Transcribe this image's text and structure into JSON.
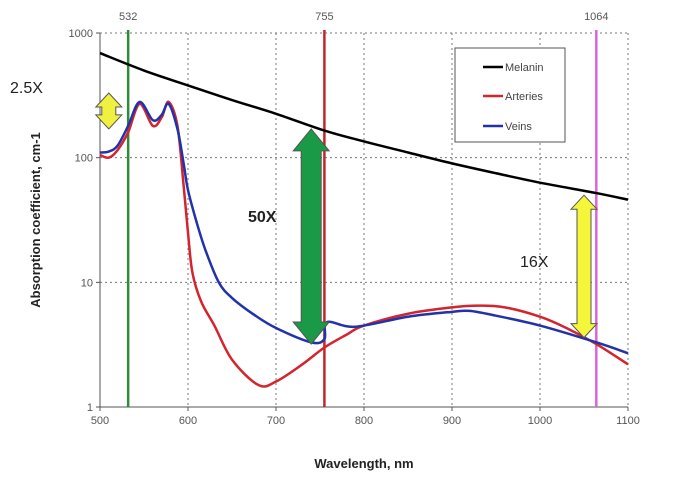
{
  "chart_data": {
    "type": "line",
    "title": "",
    "xlabel": "Wavelength, nm",
    "ylabel": "Absorption coefficient, cm-1",
    "xlim": [
      500,
      1100
    ],
    "ylim": [
      1,
      1000
    ],
    "yscale": "log",
    "grid": true,
    "xticks": [
      "500",
      "600",
      "700",
      "800",
      "900",
      "1000",
      "1100"
    ],
    "yticks": [
      "1",
      "10",
      "100",
      "1000"
    ],
    "legend_position": "top-right",
    "series": [
      {
        "name": "Melanin",
        "color": "#000000",
        "x": [
          500,
          550,
          600,
          650,
          700,
          755,
          800,
          850,
          900,
          950,
          1000,
          1064,
          1100
        ],
        "y": [
          690,
          500,
          380,
          290,
          225,
          165,
          135,
          110,
          90,
          75,
          63,
          52,
          46
        ]
      },
      {
        "name": "Arteries",
        "color": "#d4242e",
        "x": [
          500,
          510,
          520,
          532,
          545,
          560,
          570,
          578,
          588,
          595,
          600,
          605,
          615,
          630,
          650,
          680,
          700,
          730,
          755,
          780,
          800,
          850,
          900,
          930,
          960,
          1000,
          1030,
          1064,
          1100
        ],
        "y": [
          105,
          100,
          115,
          160,
          270,
          180,
          210,
          280,
          180,
          60,
          25,
          12,
          7,
          4.5,
          2.4,
          1.5,
          1.6,
          2.2,
          3.0,
          3.8,
          4.5,
          5.6,
          6.3,
          6.5,
          6.3,
          5.3,
          4.3,
          3.2,
          2.2
        ]
      },
      {
        "name": "Veins",
        "color": "#2233aa",
        "x": [
          500,
          510,
          520,
          532,
          545,
          560,
          570,
          578,
          588,
          595,
          600,
          610,
          620,
          635,
          650,
          675,
          700,
          740,
          755,
          758,
          790,
          850,
          900,
          920,
          950,
          1000,
          1064,
          1100
        ],
        "y": [
          110,
          112,
          125,
          180,
          280,
          200,
          220,
          270,
          170,
          90,
          55,
          30,
          18,
          10,
          7.5,
          5.5,
          4.3,
          3.3,
          3.5,
          4.8,
          4.4,
          5.3,
          5.8,
          5.9,
          5.4,
          4.5,
          3.3,
          2.7
        ]
      }
    ],
    "laser_lines": [
      {
        "label": "532",
        "x": 532,
        "color": "#2e8b3a"
      },
      {
        "label": "755",
        "x": 755,
        "color": "#c0262e"
      },
      {
        "label": "1064",
        "x": 1064,
        "color": "#d966d6"
      }
    ],
    "annotations": [
      {
        "text": "2.5X",
        "x": 510,
        "y_from": 330,
        "y_to": 170,
        "color": "#f0f040"
      },
      {
        "text": "50X",
        "x": 740,
        "y_from": 170,
        "y_to": 3.2,
        "color": "#1a9a46"
      },
      {
        "text": "16X",
        "x": 1050,
        "y_from": 50,
        "y_to": 3.6,
        "color": "#f5f53a"
      }
    ]
  }
}
